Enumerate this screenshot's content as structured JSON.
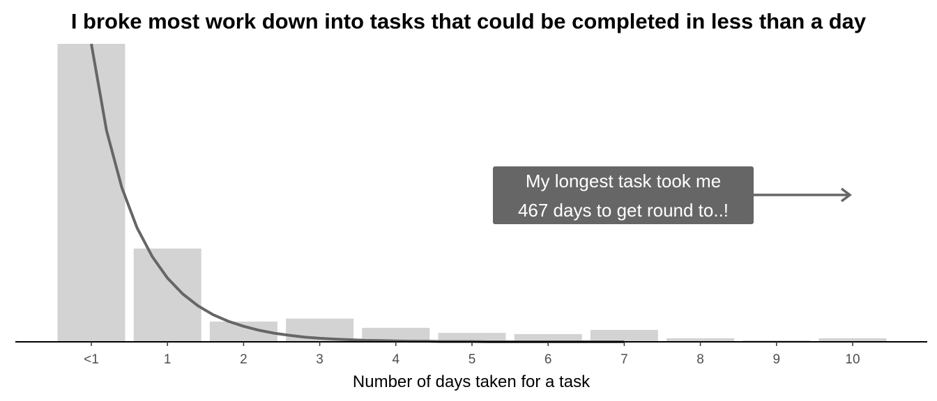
{
  "chart_data": {
    "type": "bar",
    "title": "I broke most work down into tasks that could be completed in less than a day",
    "xlabel": "Number of days taken for a task",
    "ylabel": "",
    "categories": [
      "<1",
      "1",
      "2",
      "3",
      "4",
      "5",
      "6",
      "7",
      "8",
      "9",
      "10"
    ],
    "values": [
      100,
      31.3,
      6.8,
      7.8,
      4.7,
      3.0,
      2.6,
      4.0,
      1.2,
      0.5,
      1.2
    ],
    "ylim": [
      0,
      100
    ],
    "grid": false,
    "trend_curve": {
      "type": "exponential-decay",
      "x": [
        0,
        0.2,
        0.4,
        0.6,
        0.8,
        1,
        1.2,
        1.4,
        1.6,
        1.8,
        2,
        2.2,
        2.4,
        2.6,
        2.8,
        3,
        3.2,
        3.4,
        3.6,
        3.8,
        4,
        4.2,
        4.4,
        4.6,
        4.8,
        5,
        5.2,
        5.4,
        5.6,
        5.8,
        6,
        6.2,
        6.4,
        6.6,
        6.8,
        7
      ],
      "y": [
        100,
        70.9,
        51.8,
        38.3,
        28.6,
        21.4,
        16.1,
        12.1,
        9.1,
        6.9,
        5.2,
        3.9,
        2.9,
        2.2,
        1.6,
        1.2,
        0.9,
        0.7,
        0.5,
        0.4,
        0.3,
        0.2,
        0.2,
        0.1,
        0.1,
        0.1,
        0,
        0,
        0,
        0,
        0,
        0,
        0,
        0,
        0,
        0
      ]
    },
    "annotation": {
      "lines": [
        "My longest task took me",
        "467 days to get round to..!"
      ],
      "arrow_direction": "right"
    },
    "colors": {
      "bar": "#d3d3d3",
      "curve": "#666666",
      "annotation_bg": "#666666",
      "annotation_text": "#ffffff",
      "axis": "#000000"
    }
  }
}
